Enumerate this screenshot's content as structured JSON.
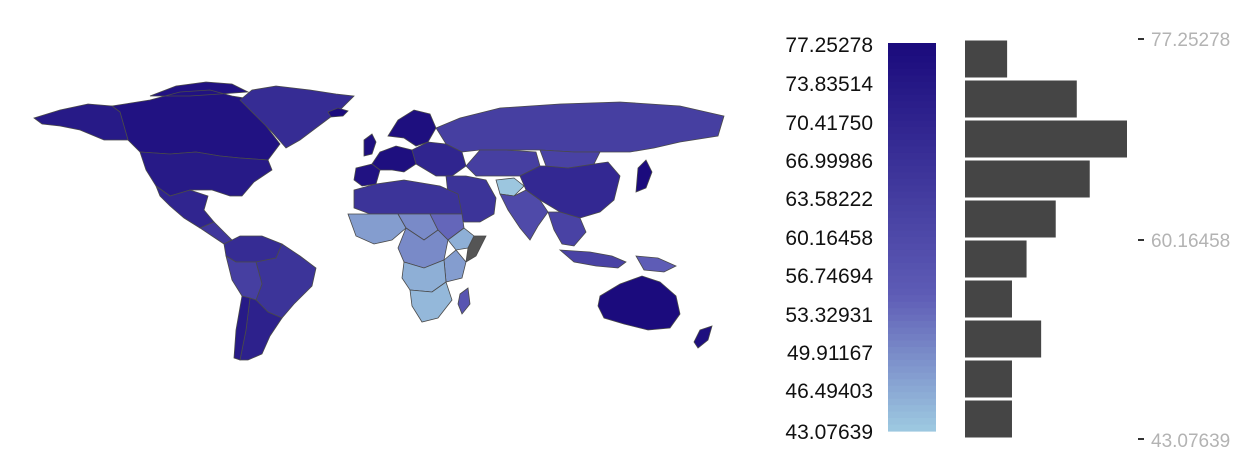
{
  "colors": {
    "low": "#9ecae1",
    "high": "#1a0a7c",
    "missing": "#555555",
    "border": "#4a4a4a",
    "bar": "#454545",
    "axis_text": "#b3b3b3"
  },
  "chart_data": {
    "type": "choropleth-map",
    "title": "",
    "colorbar": {
      "min": 43.07639,
      "max": 77.25278,
      "tick_labels": [
        "77.25278",
        "73.83514",
        "70.41750",
        "66.99986",
        "63.58222",
        "60.16458",
        "56.74694",
        "53.32931",
        "49.91167",
        "46.49403",
        "43.07639"
      ]
    },
    "histogram": {
      "orientation": "horizontal",
      "bins_count_relative": [
        0.26,
        0.69,
        1.0,
        0.77,
        0.56,
        0.38,
        0.29,
        0.47,
        0.29,
        0.29
      ],
      "axis_ticks": [
        "77.25278",
        "60.16458",
        "43.07639"
      ]
    },
    "regions": [
      {
        "name": "Canada",
        "value": 75
      },
      {
        "name": "United States",
        "value": 73
      },
      {
        "name": "Alaska",
        "value": 73
      },
      {
        "name": "Greenland",
        "value": 68
      },
      {
        "name": "Mexico",
        "value": 70
      },
      {
        "name": "Central America",
        "value": 65
      },
      {
        "name": "Colombia/Venezuela",
        "value": 68
      },
      {
        "name": "Brazil",
        "value": 66
      },
      {
        "name": "Peru/Bolivia",
        "value": 63
      },
      {
        "name": "Argentina",
        "value": 71
      },
      {
        "name": "Chile",
        "value": 73
      },
      {
        "name": "Russia",
        "value": 63
      },
      {
        "name": "Scandinavia",
        "value": 76
      },
      {
        "name": "Western Europe",
        "value": 76
      },
      {
        "name": "Eastern Europe",
        "value": 70
      },
      {
        "name": "Iberia",
        "value": 75
      },
      {
        "name": "Iceland",
        "value": 77
      },
      {
        "name": "United Kingdom",
        "value": 76
      },
      {
        "name": "Kazakhstan",
        "value": 63
      },
      {
        "name": "China",
        "value": 69
      },
      {
        "name": "Mongolia",
        "value": 62
      },
      {
        "name": "Middle East",
        "value": 66
      },
      {
        "name": "Afghanistan",
        "value": 43.5
      },
      {
        "name": "India",
        "value": 60
      },
      {
        "name": "Southeast Asia",
        "value": 62
      },
      {
        "name": "Japan",
        "value": 77
      },
      {
        "name": "Indonesia",
        "value": 62
      },
      {
        "name": "New Guinea",
        "value": 55
      },
      {
        "name": "North Africa",
        "value": 66
      },
      {
        "name": "West Africa",
        "value": 48
      },
      {
        "name": "Sahel",
        "value": 50
      },
      {
        "name": "Sudan",
        "value": 54
      },
      {
        "name": "Ethiopia",
        "value": 46
      },
      {
        "name": "Congo",
        "value": 50
      },
      {
        "name": "East Africa",
        "value": 48
      },
      {
        "name": "Angola/Zambia",
        "value": 46
      },
      {
        "name": "Southern Africa",
        "value": 45
      },
      {
        "name": "Madagascar",
        "value": 57
      },
      {
        "name": "Australia",
        "value": 77
      },
      {
        "name": "New Zealand",
        "value": 76
      },
      {
        "name": "Somalia",
        "value": null
      }
    ]
  }
}
